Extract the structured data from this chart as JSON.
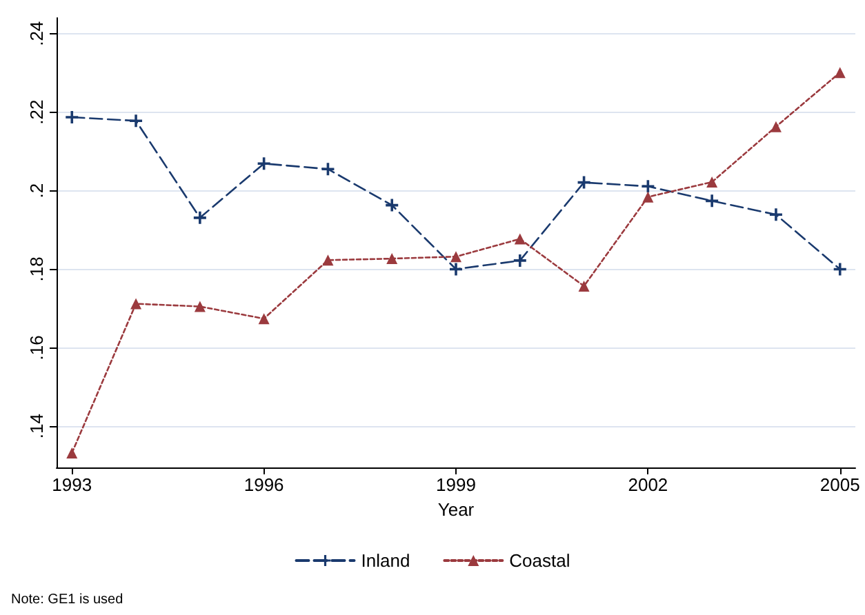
{
  "chart_data": {
    "type": "line",
    "xlabel": "Year",
    "x": [
      1993,
      1994,
      1995,
      1996,
      1997,
      1998,
      1999,
      2000,
      2001,
      2002,
      2003,
      2004,
      2005
    ],
    "series": [
      {
        "name": "Inland",
        "color": "#1a3a6e",
        "marker": "cross",
        "line_style": "dashed",
        "values": [
          0.2187,
          0.2178,
          0.1931,
          0.2069,
          0.2055,
          0.1963,
          0.18,
          0.1822,
          0.2021,
          0.2011,
          0.1974,
          0.1939,
          0.18
        ]
      },
      {
        "name": "Coastal",
        "color": "#9b3a3e",
        "marker": "triangle",
        "line_style": "dotted",
        "values": [
          0.1332,
          0.1712,
          0.1705,
          0.1674,
          0.1823,
          0.1827,
          0.1832,
          0.1877,
          0.1757,
          0.1984,
          0.2022,
          0.2163,
          0.2301
        ]
      }
    ],
    "xlim": [
      1992.76,
      2005.24
    ],
    "xticks": [
      1993,
      1996,
      1999,
      2002,
      2005
    ],
    "ylim": [
      0.1295,
      0.244
    ],
    "yticks": [
      {
        "value": 0.14,
        "label": ".14"
      },
      {
        "value": 0.16,
        "label": ".16"
      },
      {
        "value": 0.18,
        "label": ".18"
      },
      {
        "value": 0.2,
        "label": ".2"
      },
      {
        "value": 0.22,
        "label": ".22"
      },
      {
        "value": 0.24,
        "label": ".24"
      }
    ],
    "grid": "y",
    "legend": "bottom",
    "annotations": [
      "Note: GE1 is used"
    ]
  }
}
